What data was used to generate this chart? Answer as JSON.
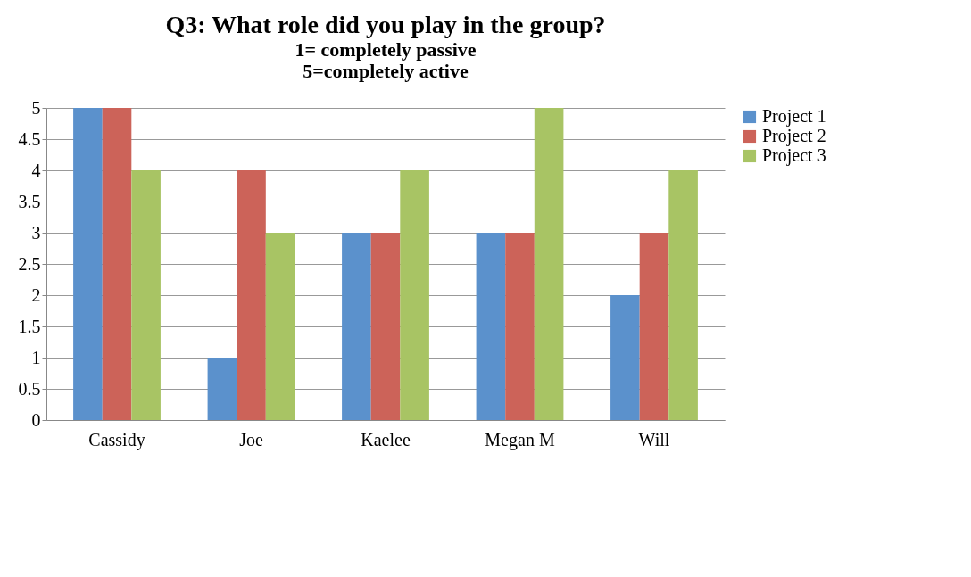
{
  "chart_data": {
    "type": "bar",
    "title": "Q3: What role did you play in the group?",
    "subtitle": "1= completely passive\n5=completely active",
    "categories": [
      "Cassidy",
      "Joe",
      "Kaelee",
      "Megan M",
      "Will"
    ],
    "series": [
      {
        "name": "Project 1",
        "color": "#5b91cc",
        "values": [
          5,
          1,
          3,
          3,
          2
        ]
      },
      {
        "name": "Project 2",
        "color": "#cc6359",
        "values": [
          5,
          4,
          3,
          3,
          3
        ]
      },
      {
        "name": "Project 3",
        "color": "#a8c464",
        "values": [
          4,
          3,
          4,
          5,
          4
        ]
      }
    ],
    "ylim": [
      0,
      5
    ],
    "yticks": [
      0,
      0.5,
      1,
      1.5,
      2,
      2.5,
      3,
      3.5,
      4,
      4.5,
      5
    ],
    "grid": "y",
    "legend": "right"
  }
}
